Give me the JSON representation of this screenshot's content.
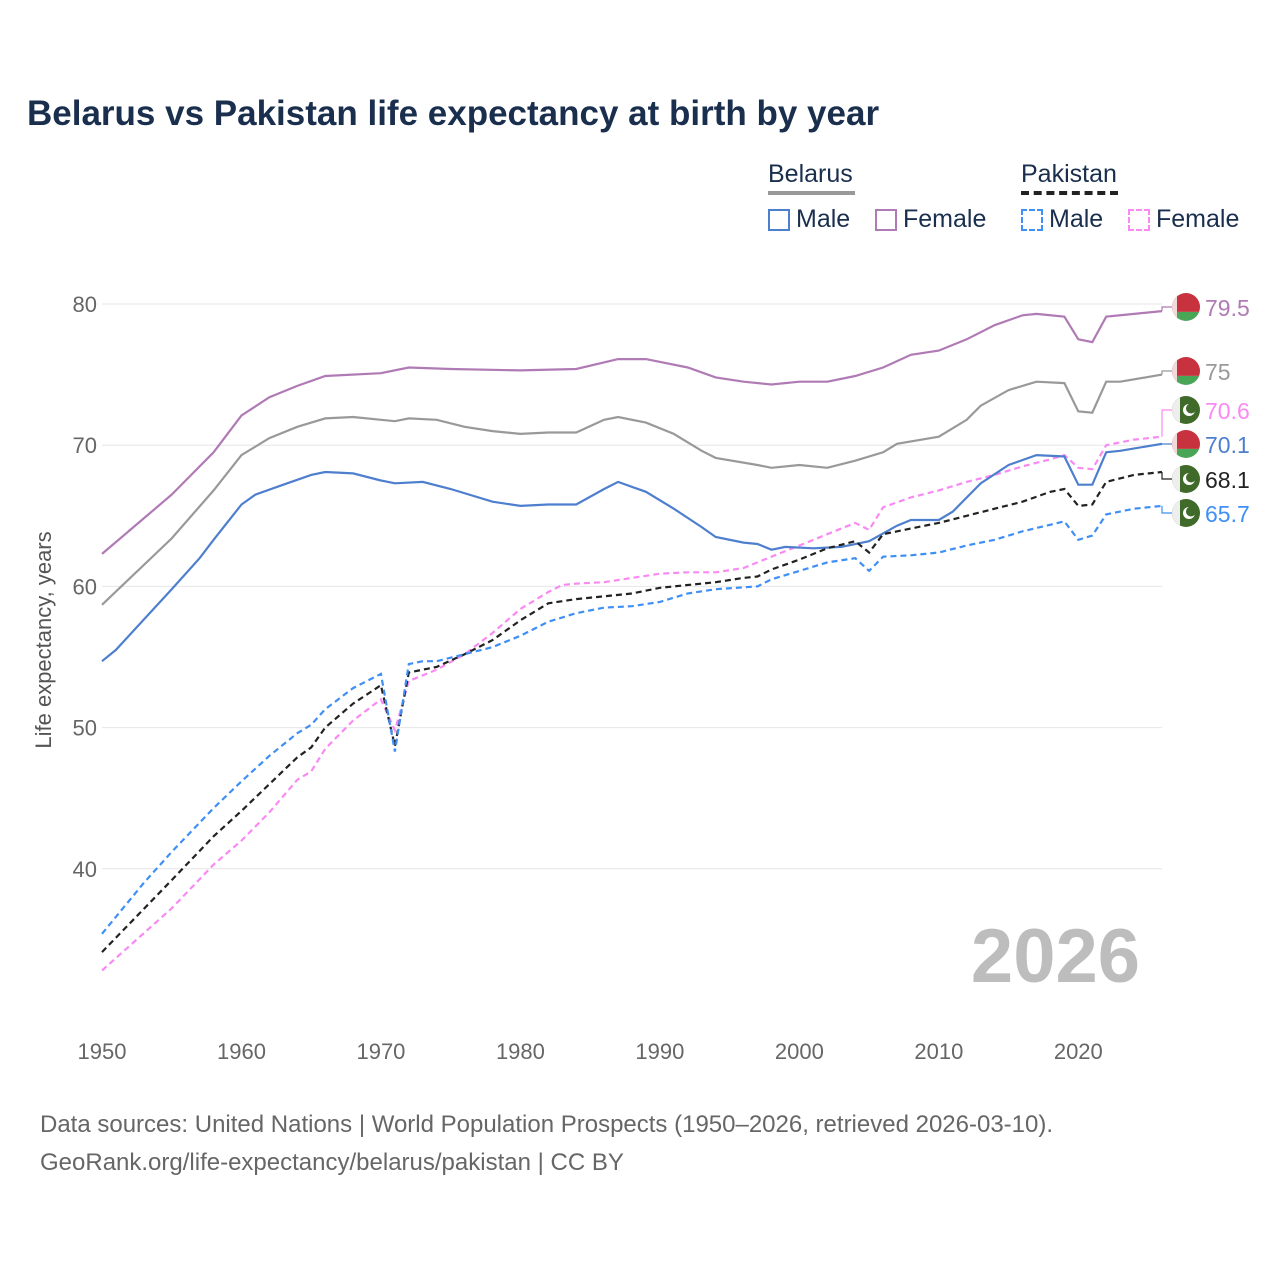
{
  "chart_data": {
    "type": "line",
    "title": "Belarus vs Pakistan life expectancy at birth by year",
    "xlabel": "",
    "ylabel": "Life expectancy, years",
    "xlim": [
      1950,
      2026
    ],
    "ylim": [
      30,
      82
    ],
    "xticks": [
      1950,
      1960,
      1970,
      1980,
      1990,
      2000,
      2010,
      2020
    ],
    "yticks": [
      40,
      50,
      60,
      70,
      80
    ],
    "grid": true,
    "watermark_year": "2026",
    "legend": {
      "placement": "top-right",
      "groups": [
        {
          "name": "Belarus",
          "items": [
            "Male",
            "Female"
          ]
        },
        {
          "name": "Pakistan",
          "items": [
            "Male",
            "Female"
          ]
        }
      ]
    },
    "series": [
      {
        "name": "Belarus Female",
        "color": "#b07ab5",
        "dash": false,
        "end_label": "79.5",
        "points": [
          [
            1950,
            62.3
          ],
          [
            1955,
            66.5
          ],
          [
            1958,
            69.5
          ],
          [
            1960,
            72.1
          ],
          [
            1962,
            73.4
          ],
          [
            1964,
            74.2
          ],
          [
            1966,
            74.9
          ],
          [
            1970,
            75.1
          ],
          [
            1972,
            75.5
          ],
          [
            1975,
            75.4
          ],
          [
            1980,
            75.3
          ],
          [
            1984,
            75.4
          ],
          [
            1987,
            76.1
          ],
          [
            1989,
            76.1
          ],
          [
            1992,
            75.5
          ],
          [
            1994,
            74.8
          ],
          [
            1996,
            74.5
          ],
          [
            1998,
            74.3
          ],
          [
            2000,
            74.5
          ],
          [
            2002,
            74.5
          ],
          [
            2004,
            74.9
          ],
          [
            2006,
            75.5
          ],
          [
            2008,
            76.4
          ],
          [
            2010,
            76.7
          ],
          [
            2012,
            77.5
          ],
          [
            2014,
            78.5
          ],
          [
            2016,
            79.2
          ],
          [
            2017,
            79.3
          ],
          [
            2019,
            79.1
          ],
          [
            2020,
            77.5
          ],
          [
            2021,
            77.3
          ],
          [
            2022,
            79.1
          ],
          [
            2024,
            79.3
          ],
          [
            2026,
            79.5
          ]
        ]
      },
      {
        "name": "Belarus",
        "color": "#999999",
        "dash": false,
        "end_label": "75",
        "points": [
          [
            1950,
            58.7
          ],
          [
            1955,
            63.4
          ],
          [
            1958,
            66.8
          ],
          [
            1960,
            69.3
          ],
          [
            1962,
            70.5
          ],
          [
            1964,
            71.3
          ],
          [
            1966,
            71.9
          ],
          [
            1968,
            72.0
          ],
          [
            1970,
            71.8
          ],
          [
            1971,
            71.7
          ],
          [
            1972,
            71.9
          ],
          [
            1974,
            71.8
          ],
          [
            1976,
            71.3
          ],
          [
            1978,
            71.0
          ],
          [
            1980,
            70.8
          ],
          [
            1982,
            70.9
          ],
          [
            1984,
            70.9
          ],
          [
            1986,
            71.8
          ],
          [
            1987,
            72.0
          ],
          [
            1989,
            71.6
          ],
          [
            1991,
            70.8
          ],
          [
            1993,
            69.6
          ],
          [
            1994,
            69.1
          ],
          [
            1997,
            68.6
          ],
          [
            1998,
            68.4
          ],
          [
            2000,
            68.6
          ],
          [
            2002,
            68.4
          ],
          [
            2004,
            68.9
          ],
          [
            2006,
            69.5
          ],
          [
            2007,
            70.1
          ],
          [
            2010,
            70.6
          ],
          [
            2012,
            71.8
          ],
          [
            2013,
            72.8
          ],
          [
            2015,
            73.9
          ],
          [
            2017,
            74.5
          ],
          [
            2019,
            74.4
          ],
          [
            2020,
            72.4
          ],
          [
            2021,
            72.3
          ],
          [
            2022,
            74.5
          ],
          [
            2023,
            74.5
          ],
          [
            2026,
            75.0
          ]
        ]
      },
      {
        "name": "Pakistan Female",
        "color": "#f98af4",
        "dash": true,
        "end_label": "70.6",
        "points": [
          [
            1950,
            32.8
          ],
          [
            1955,
            37.2
          ],
          [
            1958,
            40.3
          ],
          [
            1960,
            42.0
          ],
          [
            1962,
            44.0
          ],
          [
            1964,
            46.3
          ],
          [
            1965,
            46.9
          ],
          [
            1966,
            48.5
          ],
          [
            1968,
            50.5
          ],
          [
            1970,
            52.0
          ],
          [
            1971,
            49.8
          ],
          [
            1972,
            53.3
          ],
          [
            1974,
            54.1
          ],
          [
            1976,
            55.2
          ],
          [
            1978,
            56.7
          ],
          [
            1980,
            58.4
          ],
          [
            1982,
            59.6
          ],
          [
            1983,
            60.1
          ],
          [
            1984,
            60.2
          ],
          [
            1986,
            60.3
          ],
          [
            1988,
            60.6
          ],
          [
            1990,
            60.9
          ],
          [
            1992,
            61.0
          ],
          [
            1994,
            61.0
          ],
          [
            1996,
            61.3
          ],
          [
            1998,
            62.1
          ],
          [
            2000,
            62.9
          ],
          [
            2002,
            63.7
          ],
          [
            2004,
            64.5
          ],
          [
            2005,
            64.0
          ],
          [
            2006,
            65.6
          ],
          [
            2008,
            66.3
          ],
          [
            2010,
            66.8
          ],
          [
            2012,
            67.4
          ],
          [
            2014,
            67.9
          ],
          [
            2016,
            68.5
          ],
          [
            2018,
            69.0
          ],
          [
            2019,
            69.3
          ],
          [
            2020,
            68.4
          ],
          [
            2021,
            68.3
          ],
          [
            2022,
            70.0
          ],
          [
            2024,
            70.4
          ],
          [
            2026,
            70.6
          ]
        ]
      },
      {
        "name": "Belarus Male",
        "color": "#4e7fce",
        "dash": false,
        "end_label": "70.1",
        "points": [
          [
            1950,
            54.7
          ],
          [
            1951,
            55.5
          ],
          [
            1955,
            59.8
          ],
          [
            1957,
            62.0
          ],
          [
            1958,
            63.3
          ],
          [
            1960,
            65.8
          ],
          [
            1961,
            66.5
          ],
          [
            1963,
            67.2
          ],
          [
            1965,
            67.9
          ],
          [
            1966,
            68.1
          ],
          [
            1968,
            68.0
          ],
          [
            1970,
            67.5
          ],
          [
            1971,
            67.3
          ],
          [
            1973,
            67.4
          ],
          [
            1975,
            66.9
          ],
          [
            1978,
            66.0
          ],
          [
            1980,
            65.7
          ],
          [
            1982,
            65.8
          ],
          [
            1984,
            65.8
          ],
          [
            1986,
            66.9
          ],
          [
            1987,
            67.4
          ],
          [
            1989,
            66.7
          ],
          [
            1991,
            65.5
          ],
          [
            1993,
            64.2
          ],
          [
            1994,
            63.5
          ],
          [
            1996,
            63.1
          ],
          [
            1997,
            63.0
          ],
          [
            1998,
            62.6
          ],
          [
            1999,
            62.8
          ],
          [
            2001,
            62.7
          ],
          [
            2003,
            62.8
          ],
          [
            2005,
            63.2
          ],
          [
            2007,
            64.3
          ],
          [
            2008,
            64.7
          ],
          [
            2010,
            64.7
          ],
          [
            2011,
            65.3
          ],
          [
            2013,
            67.3
          ],
          [
            2015,
            68.6
          ],
          [
            2017,
            69.3
          ],
          [
            2019,
            69.2
          ],
          [
            2020,
            67.2
          ],
          [
            2021,
            67.2
          ],
          [
            2022,
            69.5
          ],
          [
            2023,
            69.6
          ],
          [
            2026,
            70.1
          ]
        ]
      },
      {
        "name": "Pakistan",
        "color": "#222222",
        "dash": true,
        "end_label": "68.1",
        "points": [
          [
            1950,
            34.1
          ],
          [
            1955,
            39.2
          ],
          [
            1958,
            42.3
          ],
          [
            1960,
            44.1
          ],
          [
            1962,
            46.0
          ],
          [
            1964,
            47.9
          ],
          [
            1965,
            48.6
          ],
          [
            1966,
            50.0
          ],
          [
            1968,
            51.7
          ],
          [
            1970,
            53.0
          ],
          [
            1971,
            48.7
          ],
          [
            1972,
            53.9
          ],
          [
            1974,
            54.3
          ],
          [
            1976,
            55.2
          ],
          [
            1978,
            56.2
          ],
          [
            1980,
            57.6
          ],
          [
            1982,
            58.8
          ],
          [
            1984,
            59.1
          ],
          [
            1986,
            59.3
          ],
          [
            1988,
            59.5
          ],
          [
            1990,
            59.9
          ],
          [
            1992,
            60.1
          ],
          [
            1994,
            60.3
          ],
          [
            1996,
            60.6
          ],
          [
            1997,
            60.7
          ],
          [
            1998,
            61.2
          ],
          [
            2000,
            61.9
          ],
          [
            2002,
            62.7
          ],
          [
            2004,
            63.2
          ],
          [
            2005,
            62.4
          ],
          [
            2006,
            63.7
          ],
          [
            2008,
            64.1
          ],
          [
            2010,
            64.5
          ],
          [
            2012,
            65.0
          ],
          [
            2014,
            65.5
          ],
          [
            2016,
            66.0
          ],
          [
            2018,
            66.7
          ],
          [
            2019,
            66.9
          ],
          [
            2020,
            65.7
          ],
          [
            2021,
            65.8
          ],
          [
            2022,
            67.4
          ],
          [
            2024,
            67.9
          ],
          [
            2026,
            68.1
          ]
        ]
      },
      {
        "name": "Pakistan Male",
        "color": "#3f8ff5",
        "dash": true,
        "end_label": "65.7",
        "points": [
          [
            1950,
            35.4
          ],
          [
            1953,
            39.0
          ],
          [
            1955,
            41.2
          ],
          [
            1958,
            44.3
          ],
          [
            1960,
            46.2
          ],
          [
            1962,
            48.0
          ],
          [
            1964,
            49.6
          ],
          [
            1965,
            50.2
          ],
          [
            1966,
            51.3
          ],
          [
            1968,
            52.8
          ],
          [
            1970,
            53.8
          ],
          [
            1971,
            48.3
          ],
          [
            1972,
            54.5
          ],
          [
            1973,
            54.7
          ],
          [
            1974,
            54.7
          ],
          [
            1976,
            55.2
          ],
          [
            1978,
            55.7
          ],
          [
            1980,
            56.5
          ],
          [
            1982,
            57.5
          ],
          [
            1984,
            58.1
          ],
          [
            1986,
            58.5
          ],
          [
            1988,
            58.6
          ],
          [
            1990,
            58.9
          ],
          [
            1992,
            59.5
          ],
          [
            1994,
            59.8
          ],
          [
            1997,
            60.0
          ],
          [
            1998,
            60.5
          ],
          [
            2000,
            61.1
          ],
          [
            2002,
            61.7
          ],
          [
            2004,
            62.0
          ],
          [
            2005,
            61.1
          ],
          [
            2006,
            62.1
          ],
          [
            2008,
            62.2
          ],
          [
            2010,
            62.4
          ],
          [
            2012,
            62.9
          ],
          [
            2014,
            63.3
          ],
          [
            2016,
            63.9
          ],
          [
            2019,
            64.6
          ],
          [
            2020,
            63.3
          ],
          [
            2021,
            63.6
          ],
          [
            2022,
            65.1
          ],
          [
            2024,
            65.5
          ],
          [
            2026,
            65.7
          ]
        ]
      }
    ]
  },
  "colors": {
    "belarus_male": "#4e7fce",
    "belarus_female": "#b07ab5",
    "belarus": "#999999",
    "pakistan": "#222222",
    "pakistan_male": "#3f8ff5",
    "pakistan_female": "#f98af4"
  },
  "legend": {
    "belarus": "Belarus",
    "pakistan": "Pakistan",
    "male": "Male",
    "female": "Female"
  },
  "source": {
    "line1": "Data sources: United Nations | World Population Prospects (1950–2026, retrieved 2026-03-10).",
    "line2": "GeoRank.org/life-expectancy/belarus/pakistan | CC BY"
  }
}
